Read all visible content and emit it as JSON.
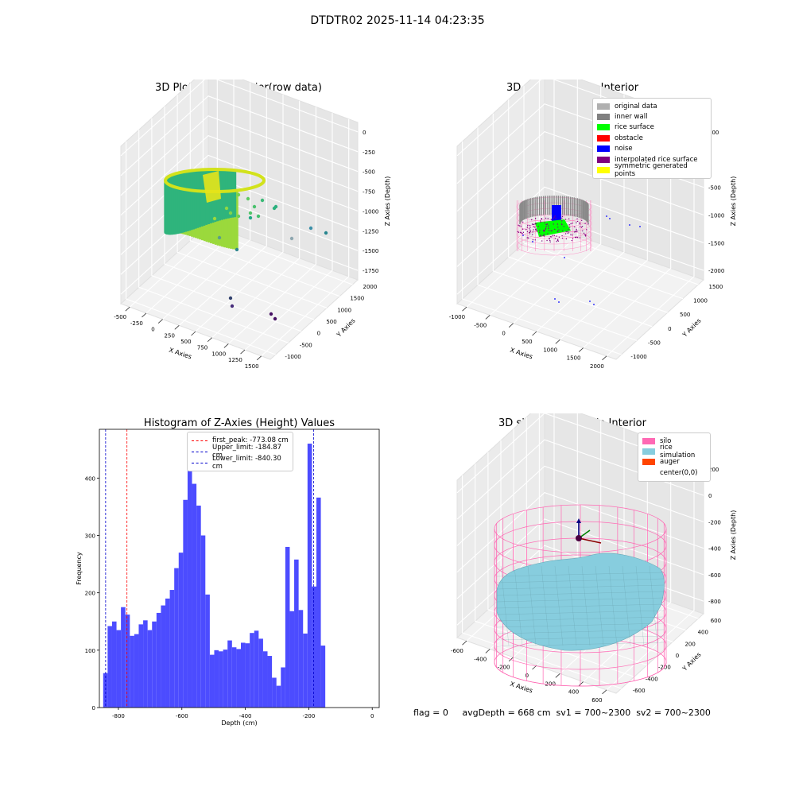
{
  "suptitle": "DTDTR02 2025-11-14 04:23:35",
  "colors": {
    "histogram_bar": "#4c4cff",
    "first_peak_line": "#ff0000",
    "limit_line": "#0000cc",
    "silo_wire": "#ff69b4",
    "rice": "#87cdde"
  },
  "chart_data": [
    {
      "type": "scatter3d",
      "title": "3D Plot of Silo Interior(row data)",
      "xlabel": "X Axies",
      "ylabel": "Y Axies",
      "zlabel": "Z Axies (Depth)",
      "xticks": [
        "-500",
        "-250",
        "0",
        "250",
        "500",
        "750",
        "1000",
        "1250",
        "1500"
      ],
      "yticks": [
        "-1000",
        "-500",
        "0",
        "500",
        "1000",
        "1500",
        "2000"
      ],
      "zticks": [
        "0",
        "-250",
        "-500",
        "-750",
        "-1000",
        "-1250",
        "-1500",
        "-1750"
      ],
      "colormap": "viridis"
    },
    {
      "type": "scatter3d",
      "title": "3D classify of Silo Interior",
      "xlabel": "X Axies",
      "ylabel": "Y Axies",
      "zlabel": "Z Axies (Depth)",
      "xticks": [
        "-1000",
        "-500",
        "0",
        "500",
        "1000",
        "1500",
        "2000"
      ],
      "yticks": [
        "-1000",
        "-500",
        "0",
        "500",
        "1000",
        "1500"
      ],
      "zticks": [
        "500",
        "0",
        "-500",
        "-1000",
        "-1500",
        "-2000"
      ],
      "legend": [
        {
          "label": "original data",
          "color": "#b0b0b0"
        },
        {
          "label": "inner wall",
          "color": "#808080"
        },
        {
          "label": "rice surface",
          "color": "#00ff00"
        },
        {
          "label": "obstacle",
          "color": "#ff0000"
        },
        {
          "label": "noise",
          "color": "#0000ff"
        },
        {
          "label": "interpolated rice surface",
          "color": "#800080"
        },
        {
          "label": "symmetric generated points",
          "color": "#ffff00"
        }
      ],
      "legend_loc": "upper right"
    },
    {
      "type": "bar",
      "title": "Histogram of Z-Axies (Height) Values",
      "xlabel": "Depth (cm)",
      "ylabel": "Frequency",
      "xlim": [
        -860,
        22
      ],
      "ylim": [
        0,
        485
      ],
      "xticks": [
        -800,
        -600,
        -400,
        -200,
        0
      ],
      "yticks": [
        0,
        100,
        200,
        300,
        400
      ],
      "bin_start": -848,
      "bin_width": 14,
      "values": [
        60,
        142,
        150,
        135,
        175,
        162,
        125,
        128,
        145,
        152,
        135,
        150,
        165,
        178,
        190,
        205,
        243,
        270,
        362,
        448,
        390,
        352,
        300,
        197,
        92,
        100,
        98,
        101,
        117,
        105,
        102,
        113,
        112,
        130,
        134,
        120,
        98,
        90,
        52,
        38,
        70,
        280,
        168,
        258,
        170,
        129,
        460,
        211,
        366,
        108
      ],
      "vlines": [
        {
          "label": "first_peak: -773.08 cm",
          "x": -773.08,
          "color": "#ff0000"
        },
        {
          "label": "Upper_limit: -184.87 cm",
          "x": -184.87,
          "color": "#0000cc"
        },
        {
          "label": "Lower_limit: -840.30 cm",
          "x": -840.3,
          "color": "#0000cc"
        }
      ],
      "legend_loc": "upper center"
    },
    {
      "type": "surface3d",
      "title": "3D simulation of Silo Interior",
      "xlabel": "X Axies",
      "ylabel": "Y Axies",
      "zlabel": "Z Axies (Depth)",
      "xticks": [
        "-600",
        "-400",
        "-200",
        "0",
        "200",
        "400",
        "600"
      ],
      "yticks": [
        "-600",
        "-400",
        "-200",
        "0",
        "200",
        "400",
        "600"
      ],
      "zticks": [
        "200",
        "0",
        "-200",
        "-400",
        "-600",
        "-800"
      ],
      "legend": [
        {
          "label": "silo",
          "color": "#ff69b4"
        },
        {
          "label": "rice simulation",
          "color": "#87cdde"
        },
        {
          "label": "auger",
          "color": "#ff4500"
        },
        {
          "label": "center(0,0)",
          "color": "#ffffff"
        }
      ],
      "legend_loc": "upper right"
    }
  ],
  "footer": "flag = 0     avgDepth = 668 cm  sv1 = 700~2300  sv2 = 700~2300"
}
